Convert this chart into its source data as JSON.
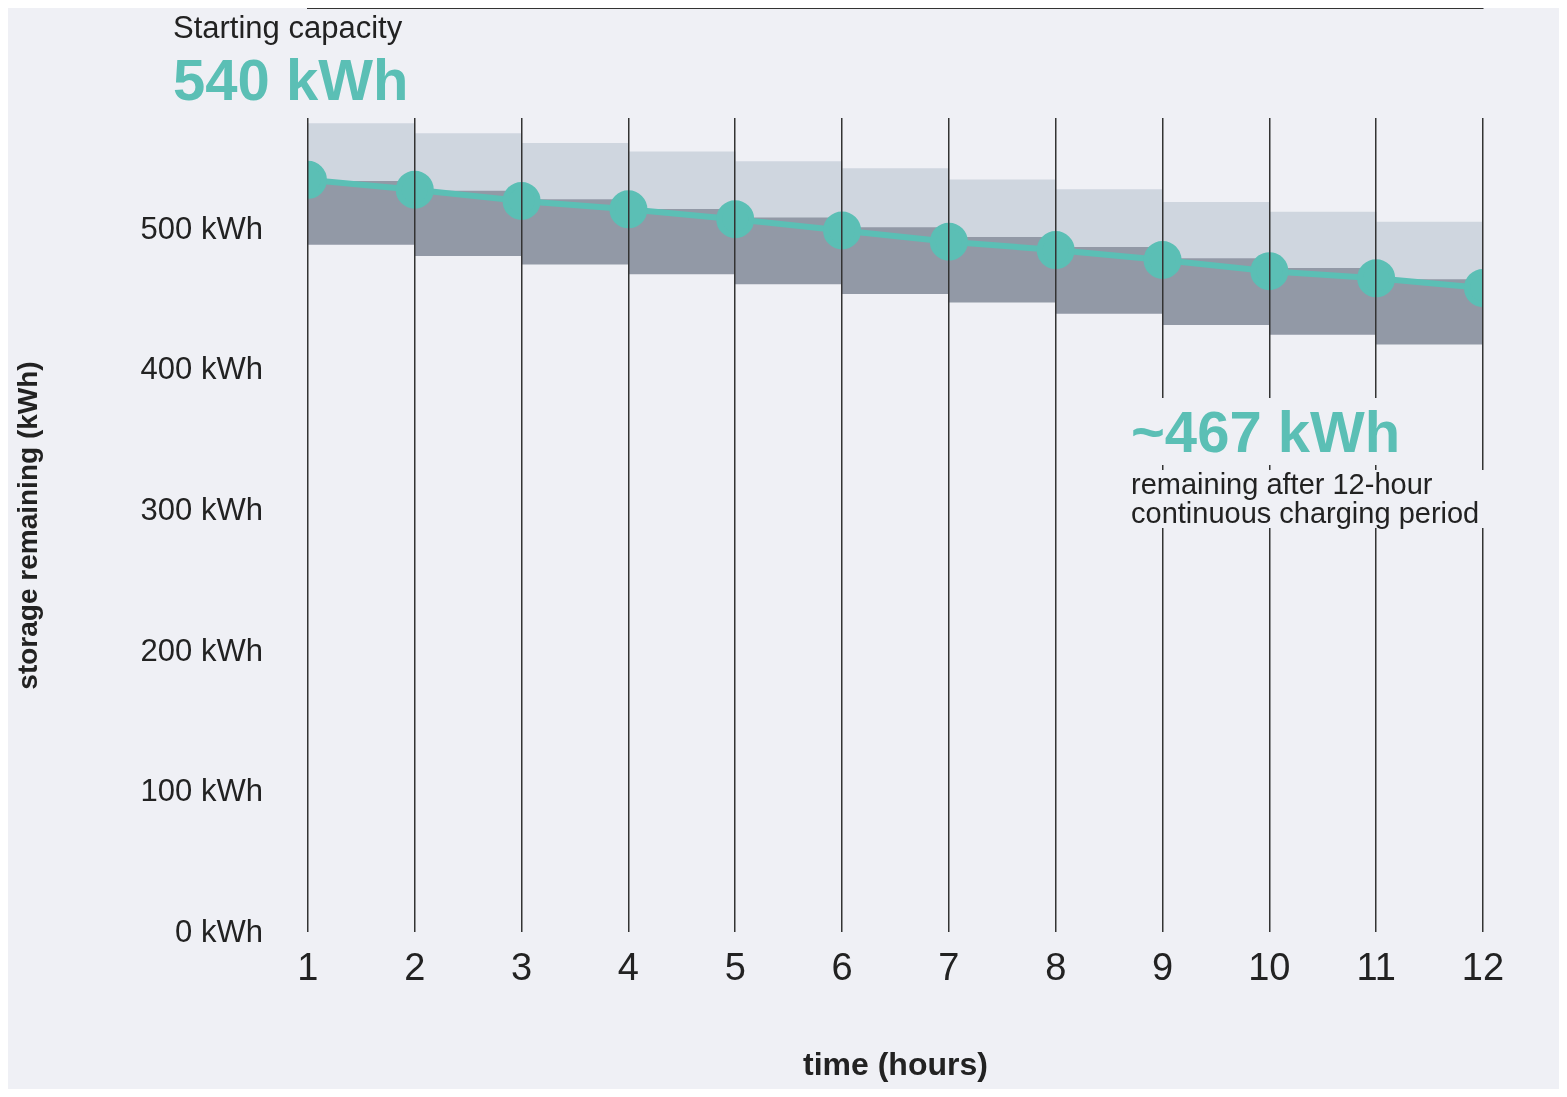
{
  "chart_data": {
    "type": "line",
    "xlabel": "time (hours)",
    "ylabel": "storage remaining (kWh)",
    "annotations": [
      "Starting capacity",
      "540 kWh",
      "~467 kWh",
      "remaining after 12-hour continuous charging period"
    ],
    "x": [
      1,
      2,
      3,
      4,
      5,
      6,
      7,
      8,
      9,
      10,
      11,
      12
    ],
    "series": [
      {
        "type": "bar",
        "color": "#9299a6",
        "x": [
          1.5,
          2.5,
          3.5,
          4.5,
          5.5,
          6.5,
          7.5,
          8.5,
          9.5,
          10.5,
          11.5
        ],
        "base": [
          490,
          482,
          476,
          469,
          462,
          455,
          449,
          441,
          433,
          426,
          419
        ],
        "values": [
          45,
          46,
          46,
          46,
          47,
          47,
          46,
          47,
          47,
          47,
          46
        ]
      },
      {
        "type": "bar",
        "color": "#cfd6df",
        "x": [
          1.5,
          2.5,
          3.5,
          4.5,
          5.5,
          6.5,
          7.5,
          8.5,
          9.5,
          10.5,
          11.5
        ],
        "base": [
          535,
          528,
          522,
          515,
          509,
          502,
          495,
          488,
          480,
          473,
          465
        ],
        "values": [
          41,
          41,
          40,
          41,
          40,
          42,
          41,
          41,
          40,
          40,
          41
        ]
      },
      {
        "color": "#5bbfb5",
        "values": [
          536,
          529,
          521,
          515,
          508,
          500,
          492,
          486,
          479,
          471,
          466,
          459
        ]
      }
    ],
    "marker": "circle",
    "xlim": [
      1,
      12
    ],
    "xticks": [
      1,
      2,
      3,
      4,
      5,
      6,
      7,
      8,
      9,
      10,
      11,
      12
    ],
    "ylim": [
      0,
      580
    ],
    "yticks": [
      {
        "value": 0,
        "label": "0 kWh"
      },
      {
        "value": 100,
        "label": "100 kWh"
      },
      {
        "value": 200,
        "label": "200 kWh"
      },
      {
        "value": 300,
        "label": "300 kWh"
      },
      {
        "value": 400,
        "label": "400 kWh"
      },
      {
        "value": 500,
        "label": "500 kWh"
      }
    ],
    "grid": "x",
    "legend": false
  }
}
